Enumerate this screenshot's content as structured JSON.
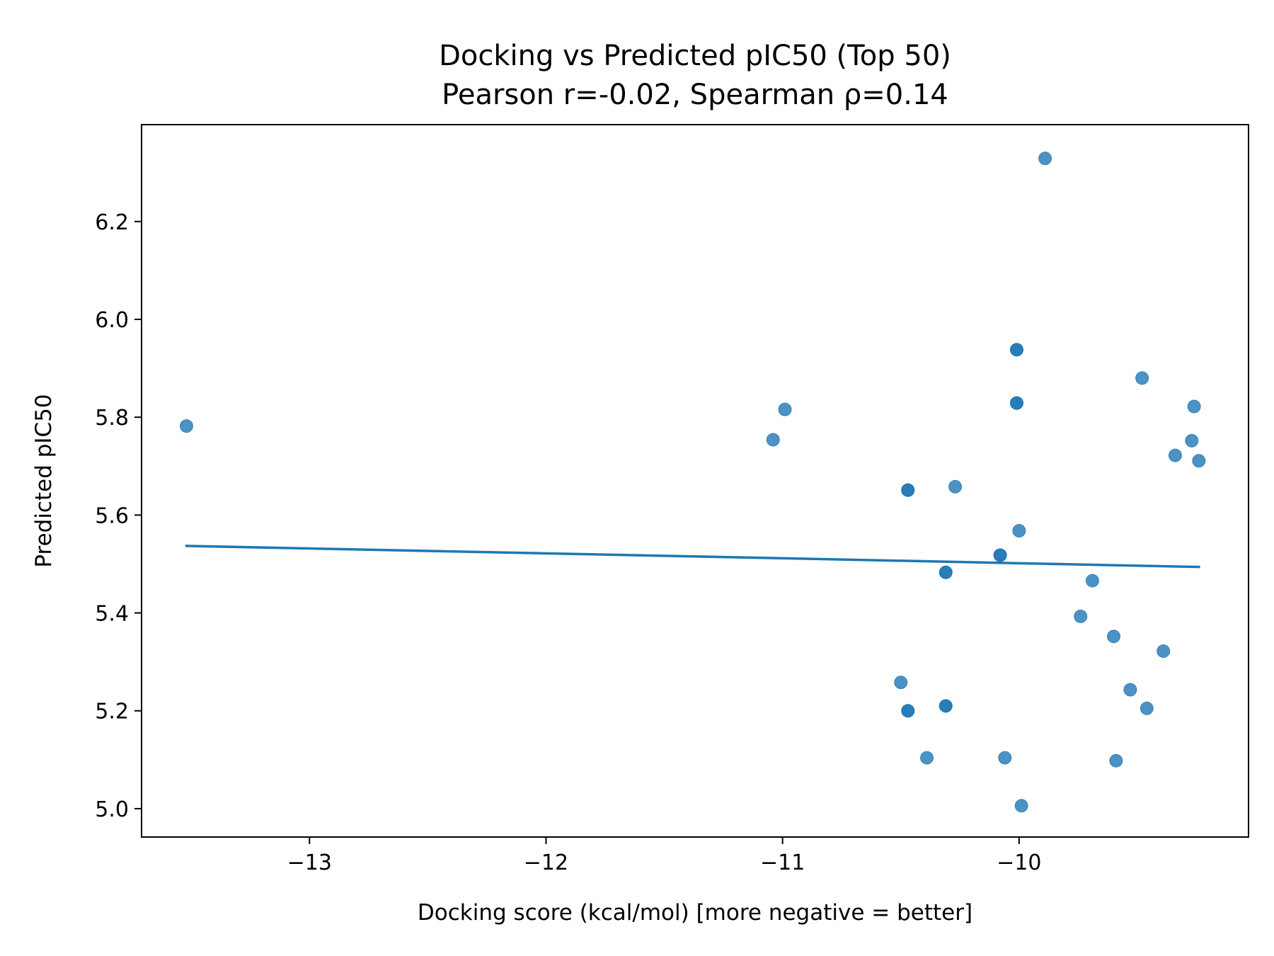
{
  "chart_data": {
    "type": "scatter",
    "title": "Docking vs Predicted pIC50 (Top 50)",
    "subtitle": "Pearson r=-0.02, Spearman ρ=0.14",
    "xlabel": "Docking score (kcal/mol)  [more negative = better]",
    "ylabel": "Predicted pIC50",
    "xlim": [
      -13.71,
      -9.03
    ],
    "ylim": [
      4.942,
      6.398
    ],
    "xticks": [
      -13,
      -12,
      -11,
      -10
    ],
    "xtick_labels": [
      "−13",
      "−12",
      "−11",
      "−10"
    ],
    "yticks": [
      5.0,
      5.2,
      5.4,
      5.6,
      5.8,
      6.0,
      6.2
    ],
    "ytick_labels": [
      "5.0",
      "5.2",
      "5.4",
      "5.6",
      "5.8",
      "6.0",
      "6.2"
    ],
    "grid": false,
    "legend": "none",
    "colors": {
      "points": "#1f77b4",
      "fit_line": "#1f77b4",
      "axes": "#000000"
    },
    "points": [
      {
        "x": -13.52,
        "y": 5.782
      },
      {
        "x": -11.04,
        "y": 5.754
      },
      {
        "x": -10.99,
        "y": 5.816
      },
      {
        "x": -10.5,
        "y": 5.258
      },
      {
        "x": -10.47,
        "y": 5.651
      },
      {
        "x": -10.47,
        "y": 5.651
      },
      {
        "x": -10.47,
        "y": 5.2
      },
      {
        "x": -10.47,
        "y": 5.2
      },
      {
        "x": -10.39,
        "y": 5.104
      },
      {
        "x": -10.31,
        "y": 5.483
      },
      {
        "x": -10.31,
        "y": 5.483
      },
      {
        "x": -10.31,
        "y": 5.21
      },
      {
        "x": -10.31,
        "y": 5.21
      },
      {
        "x": -10.27,
        "y": 5.658
      },
      {
        "x": -10.08,
        "y": 5.518
      },
      {
        "x": -10.08,
        "y": 5.518
      },
      {
        "x": -10.06,
        "y": 5.104
      },
      {
        "x": -10.01,
        "y": 5.938
      },
      {
        "x": -10.01,
        "y": 5.938
      },
      {
        "x": -10.01,
        "y": 5.829
      },
      {
        "x": -10.01,
        "y": 5.829
      },
      {
        "x": -10.0,
        "y": 5.568
      },
      {
        "x": -9.99,
        "y": 5.006
      },
      {
        "x": -9.89,
        "y": 6.329
      },
      {
        "x": -9.74,
        "y": 5.393
      },
      {
        "x": -9.69,
        "y": 5.466
      },
      {
        "x": -9.6,
        "y": 5.352
      },
      {
        "x": -9.59,
        "y": 5.098
      },
      {
        "x": -9.53,
        "y": 5.243
      },
      {
        "x": -9.48,
        "y": 5.88
      },
      {
        "x": -9.46,
        "y": 5.205
      },
      {
        "x": -9.39,
        "y": 5.322
      },
      {
        "x": -9.34,
        "y": 5.722
      },
      {
        "x": -9.26,
        "y": 5.822
      },
      {
        "x": -9.27,
        "y": 5.752
      },
      {
        "x": -9.24,
        "y": 5.711
      }
    ],
    "fit_line": {
      "x": [
        -13.52,
        -9.24
      ],
      "y": [
        5.537,
        5.494
      ]
    }
  }
}
